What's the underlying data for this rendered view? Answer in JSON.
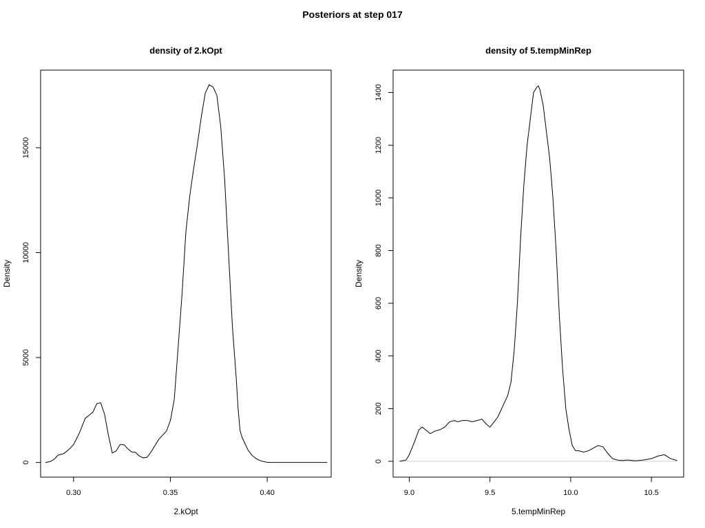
{
  "figure": {
    "title": "Posteriors at step 017"
  },
  "chart_data": [
    {
      "type": "line",
      "title": "density of 2.kOpt",
      "xlabel": "2.kOpt",
      "ylabel": "Density",
      "xlim": [
        0.283,
        0.433
      ],
      "ylim": [
        -700,
        18700
      ],
      "xticks": [
        0.3,
        0.35,
        0.4
      ],
      "xtick_labels": [
        "0.30",
        "0.35",
        "0.40"
      ],
      "yticks": [
        0,
        5000,
        10000,
        15000
      ],
      "ytick_labels": [
        "0",
        "5000",
        "10000",
        "15000"
      ],
      "baseline": false,
      "series": [
        {
          "x": [
            0.2855,
            0.288,
            0.29,
            0.292,
            0.295,
            0.298,
            0.3,
            0.303,
            0.306,
            0.308,
            0.31,
            0.312,
            0.314,
            0.316,
            0.318,
            0.32,
            0.322,
            0.324,
            0.326,
            0.328,
            0.33,
            0.332,
            0.334,
            0.336,
            0.338,
            0.34,
            0.342,
            0.344,
            0.346,
            0.348,
            0.35,
            0.352,
            0.354,
            0.356,
            0.358,
            0.36,
            0.362,
            0.364,
            0.366,
            0.368,
            0.37,
            0.372,
            0.374,
            0.376,
            0.378,
            0.38,
            0.382,
            0.384,
            0.385,
            0.386,
            0.387,
            0.388,
            0.39,
            0.392,
            0.394,
            0.396,
            0.398,
            0.4,
            0.402,
            0.404,
            0.406,
            0.408,
            0.41,
            0.412,
            0.415,
            0.418,
            0.42,
            0.425,
            0.431
          ],
          "y": [
            0,
            40,
            150,
            350,
            420,
            650,
            850,
            1400,
            2100,
            2250,
            2400,
            2800,
            2850,
            2300,
            1300,
            450,
            550,
            850,
            850,
            650,
            500,
            480,
            300,
            220,
            250,
            500,
            800,
            1100,
            1300,
            1500,
            2000,
            3000,
            5500,
            8000,
            11000,
            12700,
            14000,
            15200,
            16500,
            17600,
            18000,
            17900,
            17500,
            16000,
            13500,
            10000,
            6500,
            4000,
            2500,
            1500,
            1200,
            1000,
            600,
            350,
            200,
            100,
            40,
            10,
            0,
            0,
            0,
            0,
            0,
            0,
            0,
            0,
            0,
            0,
            0
          ]
        }
      ]
    },
    {
      "type": "line",
      "title": "density of 5.tempMinRep",
      "xlabel": "5.tempMinRep",
      "ylabel": "Density",
      "xlim": [
        8.9,
        10.7
      ],
      "ylim": [
        -60,
        1485
      ],
      "xticks": [
        9.0,
        9.5,
        10.0,
        10.5
      ],
      "xtick_labels": [
        "9.0",
        "9.5",
        "10.0",
        "10.5"
      ],
      "yticks": [
        0,
        200,
        400,
        600,
        800,
        1000,
        1200,
        1400
      ],
      "ytick_labels": [
        "0",
        "200",
        "400",
        "600",
        "800",
        "1000",
        "1200",
        "1400"
      ],
      "baseline": true,
      "series": [
        {
          "x": [
            8.94,
            8.98,
            9.0,
            9.03,
            9.06,
            9.08,
            9.1,
            9.13,
            9.16,
            9.19,
            9.22,
            9.25,
            9.28,
            9.3,
            9.33,
            9.36,
            9.39,
            9.42,
            9.45,
            9.48,
            9.5,
            9.52,
            9.55,
            9.58,
            9.61,
            9.63,
            9.65,
            9.67,
            9.69,
            9.71,
            9.73,
            9.75,
            9.77,
            9.79,
            9.8,
            9.81,
            9.83,
            9.85,
            9.87,
            9.89,
            9.91,
            9.93,
            9.95,
            9.97,
            9.99,
            10.01,
            10.03,
            10.05,
            10.08,
            10.11,
            10.14,
            10.17,
            10.2,
            10.23,
            10.26,
            10.29,
            10.32,
            10.35,
            10.4,
            10.45,
            10.5,
            10.54,
            10.58,
            10.62,
            10.66
          ],
          "y": [
            0,
            5,
            25,
            70,
            120,
            130,
            120,
            105,
            115,
            120,
            130,
            150,
            155,
            150,
            155,
            155,
            150,
            155,
            160,
            140,
            130,
            145,
            170,
            210,
            250,
            300,
            420,
            600,
            850,
            1050,
            1200,
            1300,
            1400,
            1420,
            1425,
            1410,
            1350,
            1250,
            1150,
            1000,
            800,
            550,
            350,
            200,
            120,
            60,
            40,
            40,
            35,
            40,
            50,
            60,
            55,
            30,
            10,
            5,
            3,
            5,
            2,
            5,
            10,
            20,
            25,
            10,
            3
          ]
        }
      ]
    }
  ]
}
